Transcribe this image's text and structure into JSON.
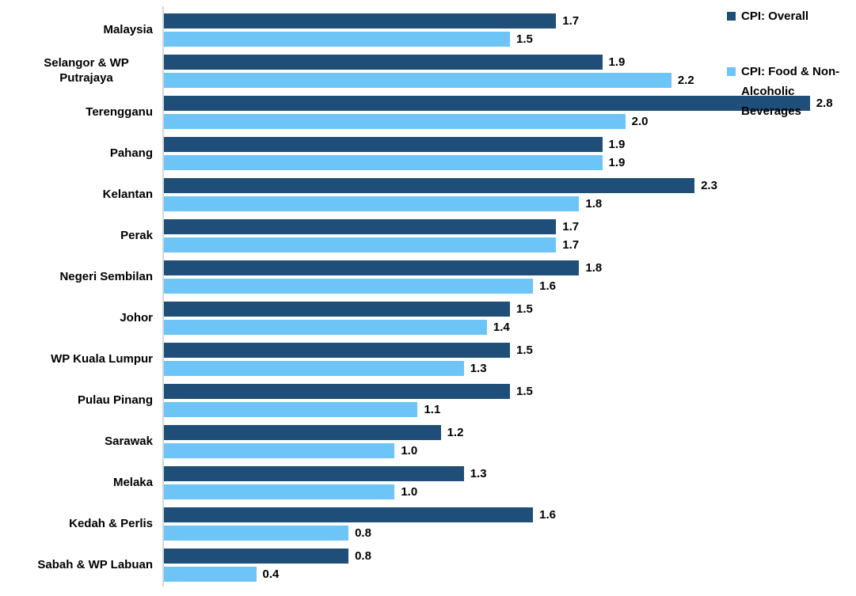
{
  "chart_data": {
    "type": "bar",
    "orientation": "horizontal",
    "title": "",
    "xlabel": "",
    "ylabel": "",
    "xlim": [
      0,
      3.0
    ],
    "grid": false,
    "legend_position": "top-right",
    "value_labels_decimals": 1,
    "axis_line_color": "#D6D6D6",
    "background_color": "#FFFFFF",
    "categories": [
      "Malaysia",
      "Selangor & WP Putrajaya",
      "Terengganu",
      "Pahang",
      "Kelantan",
      "Perak",
      "Negeri Sembilan",
      "Johor",
      "WP Kuala Lumpur",
      "Pulau Pinang",
      "Sarawak",
      "Melaka",
      "Kedah & Perlis",
      "Sabah & WP Labuan"
    ],
    "series": [
      {
        "name": "CPI: Overall",
        "color": "#1F4E79",
        "values": [
          1.7,
          1.9,
          2.8,
          1.9,
          2.3,
          1.7,
          1.8,
          1.5,
          1.5,
          1.5,
          1.2,
          1.3,
          1.6,
          0.8
        ]
      },
      {
        "name": "CPI: Food & Non-Alcoholic Beverages",
        "color": "#6CC4F7",
        "values": [
          1.5,
          2.2,
          2.0,
          1.9,
          1.8,
          1.7,
          1.6,
          1.4,
          1.3,
          1.1,
          1.0,
          1.0,
          0.8,
          0.4
        ]
      }
    ]
  },
  "legend": {
    "items": [
      {
        "label": "CPI: Overall"
      },
      {
        "label": "CPI: Food & Non-Alcoholic Beverages"
      }
    ]
  }
}
